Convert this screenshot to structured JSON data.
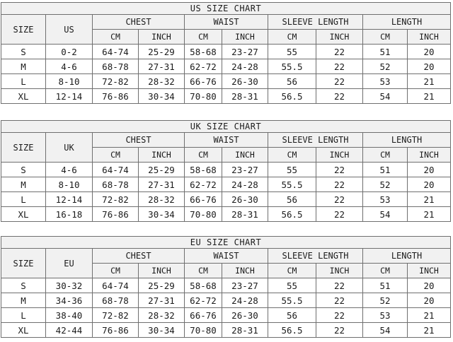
{
  "style": {
    "border_color": "#6f6f6f",
    "header_background": "#f1f1f1",
    "row_background": "#ffffff",
    "text_color": "#1b1b1b",
    "page_background": "#ffffff"
  },
  "shared": {
    "size_header": "SIZE",
    "groups": [
      "CHEST",
      "WAIST",
      "SLEEVE LENGTH",
      "LENGTH"
    ],
    "cm": "CM",
    "inch": "INCH"
  },
  "tables": [
    {
      "title": "US SIZE CHART",
      "region_header": "US",
      "rows": [
        [
          "S",
          "0-2",
          "64-74",
          "25-29",
          "58-68",
          "23-27",
          "55",
          "22",
          "51",
          "20"
        ],
        [
          "M",
          "4-6",
          "68-78",
          "27-31",
          "62-72",
          "24-28",
          "55.5",
          "22",
          "52",
          "20"
        ],
        [
          "L",
          "8-10",
          "72-82",
          "28-32",
          "66-76",
          "26-30",
          "56",
          "22",
          "53",
          "21"
        ],
        [
          "XL",
          "12-14",
          "76-86",
          "30-34",
          "70-80",
          "28-31",
          "56.5",
          "22",
          "54",
          "21"
        ]
      ]
    },
    {
      "title": "UK SIZE CHART",
      "region_header": "UK",
      "rows": [
        [
          "S",
          "4-6",
          "64-74",
          "25-29",
          "58-68",
          "23-27",
          "55",
          "22",
          "51",
          "20"
        ],
        [
          "M",
          "8-10",
          "68-78",
          "27-31",
          "62-72",
          "24-28",
          "55.5",
          "22",
          "52",
          "20"
        ],
        [
          "L",
          "12-14",
          "72-82",
          "28-32",
          "66-76",
          "26-30",
          "56",
          "22",
          "53",
          "21"
        ],
        [
          "XL",
          "16-18",
          "76-86",
          "30-34",
          "70-80",
          "28-31",
          "56.5",
          "22",
          "54",
          "21"
        ]
      ]
    },
    {
      "title": "EU SIZE CHART",
      "region_header": "EU",
      "rows": [
        [
          "S",
          "30-32",
          "64-74",
          "25-29",
          "58-68",
          "23-27",
          "55",
          "22",
          "51",
          "20"
        ],
        [
          "M",
          "34-36",
          "68-78",
          "27-31",
          "62-72",
          "24-28",
          "55.5",
          "22",
          "52",
          "20"
        ],
        [
          "L",
          "38-40",
          "72-82",
          "28-32",
          "66-76",
          "26-30",
          "56",
          "22",
          "53",
          "21"
        ],
        [
          "XL",
          "42-44",
          "76-86",
          "30-34",
          "70-80",
          "28-31",
          "56.5",
          "22",
          "54",
          "21"
        ]
      ]
    }
  ]
}
